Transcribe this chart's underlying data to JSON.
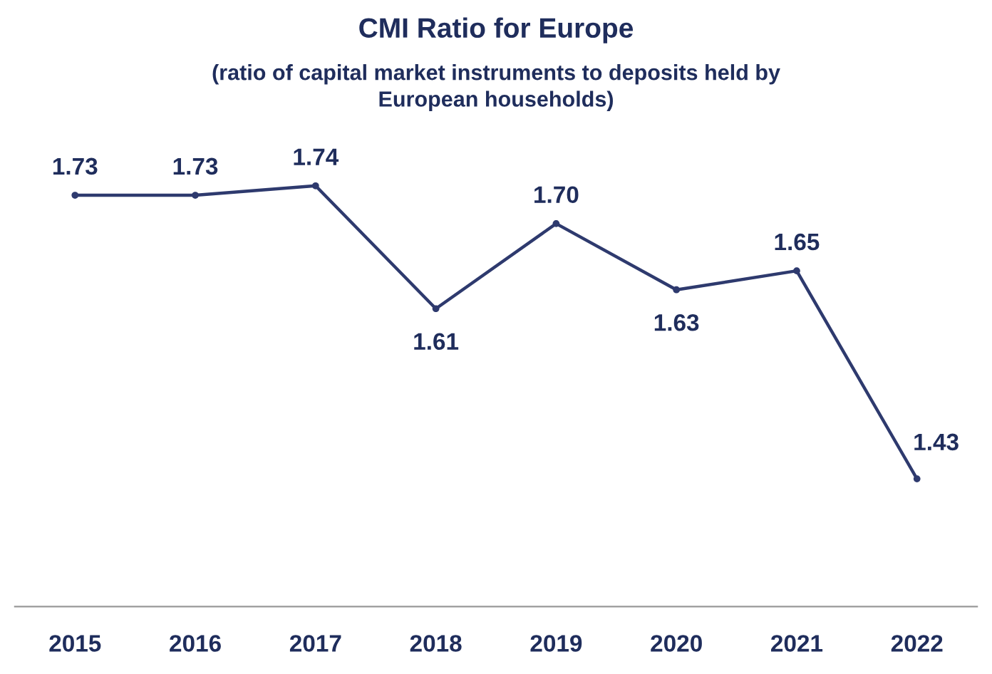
{
  "chart_data": {
    "type": "line",
    "title": "CMI Ratio for Europe",
    "subtitle": "(ratio of capital market instruments to deposits held by\nEuropean households)",
    "categories": [
      "2015",
      "2016",
      "2017",
      "2018",
      "2019",
      "2020",
      "2021",
      "2022"
    ],
    "series": [
      {
        "color": "#2e3a6e",
        "values": [
          1.73,
          1.73,
          1.74,
          1.61,
          1.7,
          1.63,
          1.65,
          1.43
        ],
        "value_labels": [
          "1.73",
          "1.73",
          "1.74",
          "1.61",
          "1.70",
          "1.63",
          "1.65",
          "1.43"
        ]
      }
    ],
    "tick_labels": "x",
    "marker": "circle",
    "line_style": "solid",
    "grid": false
  }
}
